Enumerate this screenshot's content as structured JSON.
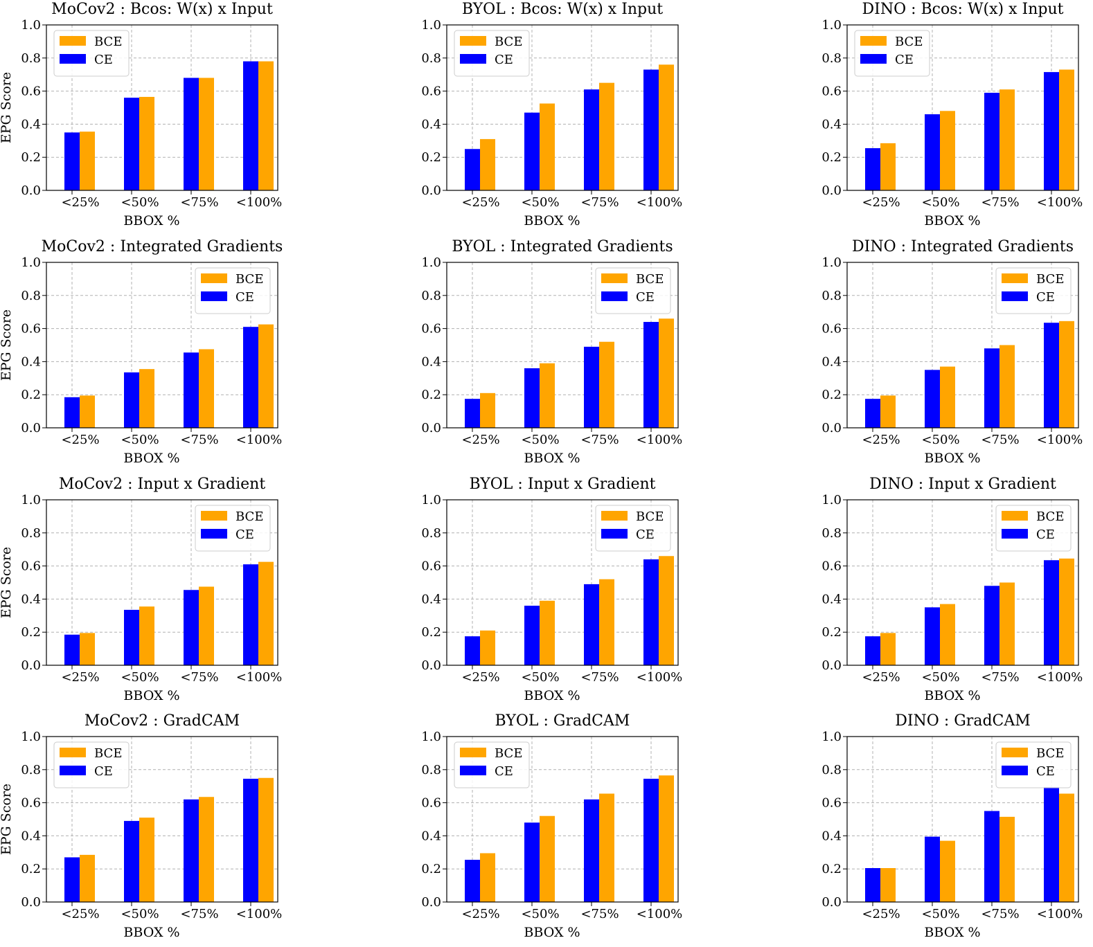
{
  "chart_data": [
    {
      "type": "bar",
      "title": "MoCov2 : Bcos: W(x) x Input",
      "xlabel": "BBOX %",
      "ylabel": "EPG Score",
      "ylim": [
        0,
        1.0
      ],
      "yticks": [
        "0.0",
        "0.2",
        "0.4",
        "0.6",
        "0.8",
        "1.0"
      ],
      "categories": [
        "<25%",
        "<50%",
        "<75%",
        "<100%"
      ],
      "legend": "top-left",
      "series": [
        {
          "name": "CE",
          "color": "#0000ff",
          "values": [
            0.35,
            0.56,
            0.68,
            0.78
          ]
        },
        {
          "name": "BCE",
          "color": "#ffa500",
          "values": [
            0.355,
            0.565,
            0.68,
            0.78
          ]
        }
      ]
    },
    {
      "type": "bar",
      "title": "BYOL : Bcos: W(x) x Input",
      "xlabel": "BBOX %",
      "ylabel": "",
      "ylim": [
        0,
        1.0
      ],
      "yticks": [
        "0.0",
        "0.2",
        "0.4",
        "0.6",
        "0.8",
        "1.0"
      ],
      "categories": [
        "<25%",
        "<50%",
        "<75%",
        "<100%"
      ],
      "legend": "top-left",
      "series": [
        {
          "name": "CE",
          "color": "#0000ff",
          "values": [
            0.25,
            0.47,
            0.61,
            0.73
          ]
        },
        {
          "name": "BCE",
          "color": "#ffa500",
          "values": [
            0.31,
            0.525,
            0.65,
            0.76
          ]
        }
      ]
    },
    {
      "type": "bar",
      "title": "DINO : Bcos: W(x) x Input",
      "xlabel": "BBOX %",
      "ylabel": "",
      "ylim": [
        0,
        1.0
      ],
      "yticks": [
        "0.0",
        "0.2",
        "0.4",
        "0.6",
        "0.8",
        "1.0"
      ],
      "categories": [
        "<25%",
        "<50%",
        "<75%",
        "<100%"
      ],
      "legend": "top-left",
      "series": [
        {
          "name": "CE",
          "color": "#0000ff",
          "values": [
            0.255,
            0.46,
            0.59,
            0.715
          ]
        },
        {
          "name": "BCE",
          "color": "#ffa500",
          "values": [
            0.285,
            0.48,
            0.61,
            0.73
          ]
        }
      ]
    },
    {
      "type": "bar",
      "title": "MoCov2 : Integrated Gradients",
      "xlabel": "BBOX %",
      "ylabel": "EPG Score",
      "ylim": [
        0,
        1.0
      ],
      "yticks": [
        "0.0",
        "0.2",
        "0.4",
        "0.6",
        "0.8",
        "1.0"
      ],
      "categories": [
        "<25%",
        "<50%",
        "<75%",
        "<100%"
      ],
      "legend": "top-right",
      "series": [
        {
          "name": "CE",
          "color": "#0000ff",
          "values": [
            0.185,
            0.335,
            0.455,
            0.61
          ]
        },
        {
          "name": "BCE",
          "color": "#ffa500",
          "values": [
            0.195,
            0.355,
            0.475,
            0.625
          ]
        }
      ]
    },
    {
      "type": "bar",
      "title": "BYOL : Integrated Gradients",
      "xlabel": "BBOX %",
      "ylabel": "",
      "ylim": [
        0,
        1.0
      ],
      "yticks": [
        "0.0",
        "0.2",
        "0.4",
        "0.6",
        "0.8",
        "1.0"
      ],
      "categories": [
        "<25%",
        "<50%",
        "<75%",
        "<100%"
      ],
      "legend": "top-right",
      "series": [
        {
          "name": "CE",
          "color": "#0000ff",
          "values": [
            0.175,
            0.36,
            0.49,
            0.64
          ]
        },
        {
          "name": "BCE",
          "color": "#ffa500",
          "values": [
            0.21,
            0.39,
            0.52,
            0.66
          ]
        }
      ]
    },
    {
      "type": "bar",
      "title": "DINO : Integrated Gradients",
      "xlabel": "BBOX %",
      "ylabel": "",
      "ylim": [
        0,
        1.0
      ],
      "yticks": [
        "0.0",
        "0.2",
        "0.4",
        "0.6",
        "0.8",
        "1.0"
      ],
      "categories": [
        "<25%",
        "<50%",
        "<75%",
        "<100%"
      ],
      "legend": "top-right",
      "series": [
        {
          "name": "CE",
          "color": "#0000ff",
          "values": [
            0.175,
            0.35,
            0.48,
            0.635
          ]
        },
        {
          "name": "BCE",
          "color": "#ffa500",
          "values": [
            0.195,
            0.37,
            0.5,
            0.645
          ]
        }
      ]
    },
    {
      "type": "bar",
      "title": "MoCov2 : Input x Gradient",
      "xlabel": "BBOX %",
      "ylabel": "EPG Score",
      "ylim": [
        0,
        1.0
      ],
      "yticks": [
        "0.0",
        "0.2",
        "0.4",
        "0.6",
        "0.8",
        "1.0"
      ],
      "categories": [
        "<25%",
        "<50%",
        "<75%",
        "<100%"
      ],
      "legend": "top-right",
      "series": [
        {
          "name": "CE",
          "color": "#0000ff",
          "values": [
            0.185,
            0.335,
            0.455,
            0.61
          ]
        },
        {
          "name": "BCE",
          "color": "#ffa500",
          "values": [
            0.195,
            0.355,
            0.475,
            0.625
          ]
        }
      ]
    },
    {
      "type": "bar",
      "title": "BYOL : Input x Gradient",
      "xlabel": "BBOX %",
      "ylabel": "",
      "ylim": [
        0,
        1.0
      ],
      "yticks": [
        "0.0",
        "0.2",
        "0.4",
        "0.6",
        "0.8",
        "1.0"
      ],
      "categories": [
        "<25%",
        "<50%",
        "<75%",
        "<100%"
      ],
      "legend": "top-right",
      "series": [
        {
          "name": "CE",
          "color": "#0000ff",
          "values": [
            0.175,
            0.36,
            0.49,
            0.64
          ]
        },
        {
          "name": "BCE",
          "color": "#ffa500",
          "values": [
            0.21,
            0.39,
            0.52,
            0.66
          ]
        }
      ]
    },
    {
      "type": "bar",
      "title": "DINO : Input x Gradient",
      "xlabel": "BBOX %",
      "ylabel": "",
      "ylim": [
        0,
        1.0
      ],
      "yticks": [
        "0.0",
        "0.2",
        "0.4",
        "0.6",
        "0.8",
        "1.0"
      ],
      "categories": [
        "<25%",
        "<50%",
        "<75%",
        "<100%"
      ],
      "legend": "top-right",
      "series": [
        {
          "name": "CE",
          "color": "#0000ff",
          "values": [
            0.175,
            0.35,
            0.48,
            0.635
          ]
        },
        {
          "name": "BCE",
          "color": "#ffa500",
          "values": [
            0.195,
            0.37,
            0.5,
            0.645
          ]
        }
      ]
    },
    {
      "type": "bar",
      "title": "MoCov2 : GradCAM",
      "xlabel": "BBOX %",
      "ylabel": "EPG Score",
      "ylim": [
        0,
        1.0
      ],
      "yticks": [
        "0.0",
        "0.2",
        "0.4",
        "0.6",
        "0.8",
        "1.0"
      ],
      "categories": [
        "<25%",
        "<50%",
        "<75%",
        "<100%"
      ],
      "legend": "top-left",
      "series": [
        {
          "name": "CE",
          "color": "#0000ff",
          "values": [
            0.27,
            0.49,
            0.62,
            0.745
          ]
        },
        {
          "name": "BCE",
          "color": "#ffa500",
          "values": [
            0.285,
            0.51,
            0.635,
            0.75
          ]
        }
      ]
    },
    {
      "type": "bar",
      "title": "BYOL : GradCAM",
      "xlabel": "BBOX %",
      "ylabel": "",
      "ylim": [
        0,
        1.0
      ],
      "yticks": [
        "0.0",
        "0.2",
        "0.4",
        "0.6",
        "0.8",
        "1.0"
      ],
      "categories": [
        "<25%",
        "<50%",
        "<75%",
        "<100%"
      ],
      "legend": "top-left",
      "series": [
        {
          "name": "CE",
          "color": "#0000ff",
          "values": [
            0.255,
            0.48,
            0.62,
            0.745
          ]
        },
        {
          "name": "BCE",
          "color": "#ffa500",
          "values": [
            0.295,
            0.52,
            0.655,
            0.765
          ]
        }
      ]
    },
    {
      "type": "bar",
      "title": "DINO : GradCAM",
      "xlabel": "BBOX %",
      "ylabel": "",
      "ylim": [
        0,
        1.0
      ],
      "yticks": [
        "0.0",
        "0.2",
        "0.4",
        "0.6",
        "0.8",
        "1.0"
      ],
      "categories": [
        "<25%",
        "<50%",
        "<75%",
        "<100%"
      ],
      "legend": "top-right",
      "series": [
        {
          "name": "CE",
          "color": "#0000ff",
          "values": [
            0.205,
            0.395,
            0.55,
            0.695
          ]
        },
        {
          "name": "BCE",
          "color": "#ffa500",
          "values": [
            0.205,
            0.37,
            0.515,
            0.655
          ]
        }
      ]
    }
  ]
}
